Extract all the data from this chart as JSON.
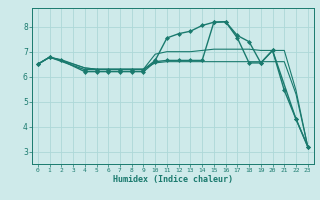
{
  "xlabel": "Humidex (Indice chaleur)",
  "background_color": "#ceeaea",
  "grid_color": "#add8d8",
  "line_color": "#1a7a6e",
  "xlim": [
    -0.5,
    23.5
  ],
  "ylim": [
    2.5,
    8.75
  ],
  "xticks": [
    0,
    1,
    2,
    3,
    4,
    5,
    6,
    7,
    8,
    9,
    10,
    11,
    12,
    13,
    14,
    15,
    16,
    17,
    18,
    19,
    20,
    21,
    22,
    23
  ],
  "yticks": [
    3,
    4,
    5,
    6,
    7,
    8
  ],
  "series": [
    {
      "x": [
        0,
        1,
        2,
        4,
        5,
        6,
        7,
        8,
        9,
        10,
        11,
        12,
        13,
        14,
        15,
        16,
        17,
        18,
        19,
        20,
        21,
        22,
        23
      ],
      "y": [
        6.5,
        6.78,
        6.68,
        6.35,
        6.3,
        6.3,
        6.3,
        6.3,
        6.3,
        6.55,
        6.6,
        6.6,
        6.6,
        6.6,
        6.6,
        6.6,
        6.6,
        6.6,
        6.6,
        6.6,
        6.6,
        5.3,
        3.2
      ],
      "marker": null,
      "linewidth": 0.8
    },
    {
      "x": [
        0,
        1,
        2,
        4,
        5,
        6,
        7,
        8,
        9,
        10,
        11,
        12,
        13,
        14,
        15,
        16,
        17,
        18,
        19,
        20,
        21,
        22,
        23
      ],
      "y": [
        6.5,
        6.78,
        6.65,
        6.35,
        6.3,
        6.3,
        6.3,
        6.3,
        6.3,
        6.9,
        7.0,
        7.0,
        7.0,
        7.05,
        7.1,
        7.1,
        7.1,
        7.1,
        7.05,
        7.05,
        7.05,
        5.45,
        3.2
      ],
      "marker": null,
      "linewidth": 0.8
    },
    {
      "x": [
        0,
        1,
        4,
        5,
        6,
        7,
        8,
        9,
        10,
        11,
        12,
        13,
        14,
        15,
        16,
        17,
        18,
        19,
        20,
        22,
        23
      ],
      "y": [
        6.5,
        6.78,
        6.28,
        6.28,
        6.28,
        6.28,
        6.28,
        6.28,
        6.65,
        7.55,
        7.72,
        7.82,
        8.05,
        8.18,
        8.2,
        7.65,
        7.4,
        6.55,
        7.05,
        4.3,
        3.2
      ],
      "marker": "D",
      "markersize": 2.0,
      "linewidth": 1.0
    },
    {
      "x": [
        0,
        1,
        2,
        4,
        5,
        6,
        7,
        8,
        9,
        10,
        11,
        12,
        13,
        14,
        15,
        16,
        17,
        18,
        19,
        20,
        21,
        22,
        23
      ],
      "y": [
        6.5,
        6.78,
        6.65,
        6.2,
        6.2,
        6.2,
        6.2,
        6.2,
        6.2,
        6.6,
        6.65,
        6.65,
        6.65,
        6.65,
        8.18,
        8.2,
        7.55,
        6.55,
        6.55,
        7.05,
        5.45,
        4.3,
        3.2
      ],
      "marker": "D",
      "markersize": 2.0,
      "linewidth": 1.0
    }
  ]
}
